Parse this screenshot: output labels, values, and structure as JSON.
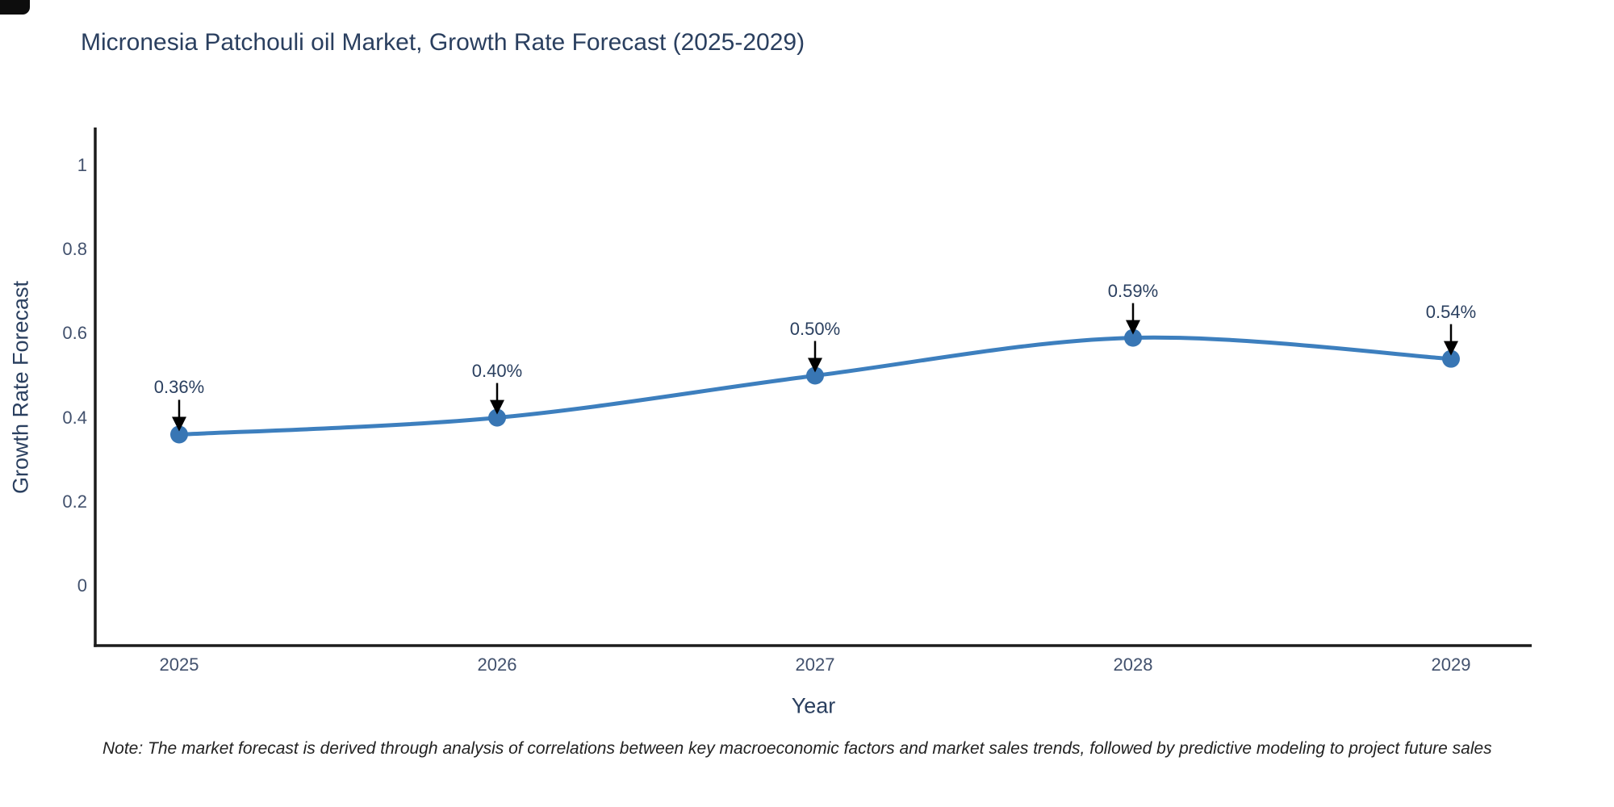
{
  "page": {
    "title": "Micronesia Patchouli oil Market, Growth Rate Forecast (2025-2029)",
    "note": "Note: The market forecast is derived through analysis of correlations between key macroeconomic factors and market sales trends, followed by predictive modeling to project future sales"
  },
  "chart_data": {
    "type": "line",
    "title": "Micronesia Patchouli oil Market, Growth Rate Forecast (2025-2029)",
    "line_shape": "spline",
    "x": [
      2025,
      2026,
      2027,
      2028,
      2029
    ],
    "x_tick_labels": [
      "2025",
      "2026",
      "2027",
      "2028",
      "2029"
    ],
    "series": [
      {
        "name": "Growth Rate Forecast",
        "values": [
          0.36,
          0.4,
          0.5,
          0.59,
          0.54
        ]
      }
    ],
    "annotations": [
      "0.36%",
      "0.40%",
      "0.50%",
      "0.59%",
      "0.54%"
    ],
    "xlabel": "Year",
    "ylabel": "Growth Rate Forecast",
    "y_ticks": [
      0,
      0.2,
      0.4,
      0.6,
      0.8,
      1
    ],
    "y_tick_labels": [
      "0",
      "0.2",
      "0.4",
      "0.6",
      "0.8",
      "1"
    ],
    "ylim": [
      -0.14,
      1.15
    ],
    "grid": false,
    "legend": "none",
    "colors": {
      "line": "#3d7fbe",
      "marker": "#3876b4",
      "arrow": "#000000",
      "axis": "#1c1c1c",
      "title_text": "#2a3f5f",
      "tick_text": "#42516d",
      "note_text": "#222222",
      "background": "#ffffff"
    }
  }
}
